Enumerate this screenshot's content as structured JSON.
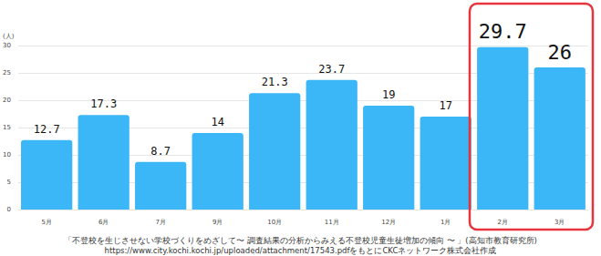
{
  "chart_data": {
    "type": "bar",
    "ylabel": "(人)",
    "categories": [
      "5月",
      "6月",
      "7月",
      "9月",
      "10月",
      "11月",
      "12月",
      "1月",
      "2月",
      "3月"
    ],
    "values": [
      12.7,
      17.3,
      8.7,
      14,
      21.3,
      23.7,
      19,
      17,
      29.7,
      26
    ],
    "color": "#3bb6f7",
    "ylim": [
      0,
      30
    ],
    "yticks": [
      0,
      5,
      10,
      15,
      20,
      25,
      30
    ],
    "grid": true,
    "data_labels": true,
    "annotations": [
      "「不登校を生じさせない学校づくりをめざして〜 調査結果の分析からみえる不登校児童生徒増加の傾向 〜 」(高知市教育研究所)",
      "https://www.city.kochi.kochi.jp/uploaded/attachment/17543.pdfをもとにCKCネットワーク株式会社作成"
    ]
  }
}
